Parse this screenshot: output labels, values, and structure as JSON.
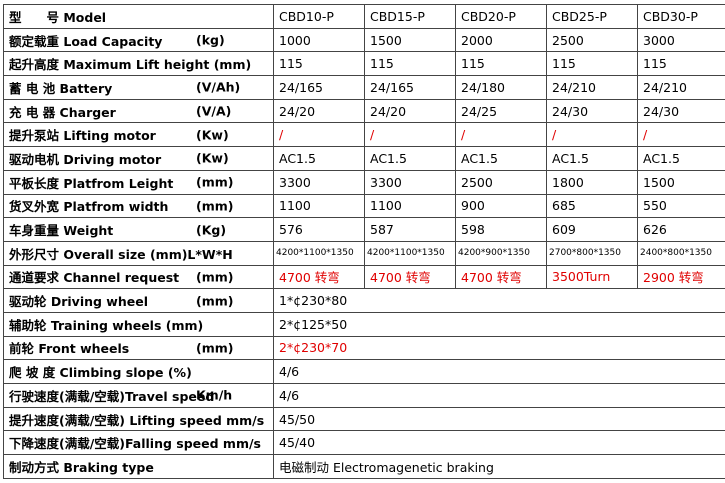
{
  "table": {
    "rows": [
      {
        "label": "型　　号 Model",
        "unit": "",
        "cells": [
          "CBD10-P",
          "CBD15-P",
          "CBD20-P",
          "CBD25-P",
          "CBD30-P"
        ]
      },
      {
        "label": "额定载重 Load Capacity",
        "unit": "(kg)",
        "cells": [
          "1000",
          "1500",
          "2000",
          "2500",
          "3000"
        ]
      },
      {
        "label": "起升高度 Maximum Lift height (mm)",
        "unit": "",
        "cells": [
          "115",
          "115",
          "115",
          "115",
          "115"
        ]
      },
      {
        "label": "蓄 电 池 Battery",
        "unit": "(V/Ah)",
        "cells": [
          "24/165",
          "24/165",
          "24/180",
          "24/210",
          "24/210"
        ]
      },
      {
        "label": "充 电 器 Charger",
        "unit": "(V/A)",
        "cells": [
          "24/20",
          "24/20",
          "24/25",
          "24/30",
          "24/30"
        ]
      },
      {
        "label": "提升泵站 Lifting motor",
        "unit": "(Kw)",
        "cells": [
          "/",
          "/",
          "/",
          "/",
          "/"
        ],
        "color": "#e00000"
      },
      {
        "label": "驱动电机 Driving motor",
        "unit": "(Kw)",
        "cells": [
          "AC1.5",
          "AC1.5",
          "AC1.5",
          "AC1.5",
          "AC1.5"
        ]
      },
      {
        "label": "平板长度 Platfrom Leight",
        "unit": "(mm)",
        "cells": [
          "3300",
          "3300",
          "2500",
          "1800",
          "1500"
        ]
      },
      {
        "label": "货叉外宽 Platfrom width",
        "unit": "(mm)",
        "cells": [
          "1100",
          "1100",
          "900",
          "685",
          "550"
        ]
      },
      {
        "label": "车身重量 Weight",
        "unit": "(Kg)",
        "cells": [
          "576",
          "587",
          "598",
          "609",
          "626"
        ]
      },
      {
        "label": "外形尺寸 Overall size (mm)L*W*H",
        "unit": "",
        "cells": [
          "4200*1100*1350",
          "4200*1100*1350",
          "4200*900*1350",
          "2700*800*1350",
          "2400*800*1350"
        ],
        "small": true
      },
      {
        "label": "通道要求 Channel request",
        "unit": "(mm)",
        "cells": [
          "4700 转弯",
          "4700 转弯",
          "4700 转弯",
          "3500Turn",
          "2900 转弯"
        ],
        "color": "#e00000"
      },
      {
        "label": "驱动轮 Driving wheel",
        "unit": "(mm)",
        "cells": [
          "1*¢230*80"
        ]
      },
      {
        "label": "辅助轮 Training wheels (mm)",
        "unit": "",
        "cells": [
          "2*¢125*50"
        ]
      },
      {
        "label": "前轮 Front wheels",
        "unit": "(mm)",
        "cells": [
          "2*¢230*70"
        ],
        "color": "#e00000"
      },
      {
        "label": "爬 坡 度 Climbing slope (%)",
        "unit": "",
        "cells": [
          "4/6"
        ]
      },
      {
        "label": "行驶速度(满载/空载)Travel speed",
        "unit": "Km/h",
        "cells": [
          "4/6"
        ]
      },
      {
        "label": "提升速度(满载/空载) Lifting speed mm/s",
        "unit": "",
        "cells": [
          "45/50"
        ]
      },
      {
        "label": "下降速度(满载/空载)Falling speed mm/s",
        "unit": "",
        "cells": [
          "45/40"
        ]
      },
      {
        "label": "制动方式 Braking type",
        "unit": "",
        "cells": [
          "电磁制动 Electromagenetic braking"
        ]
      }
    ]
  }
}
